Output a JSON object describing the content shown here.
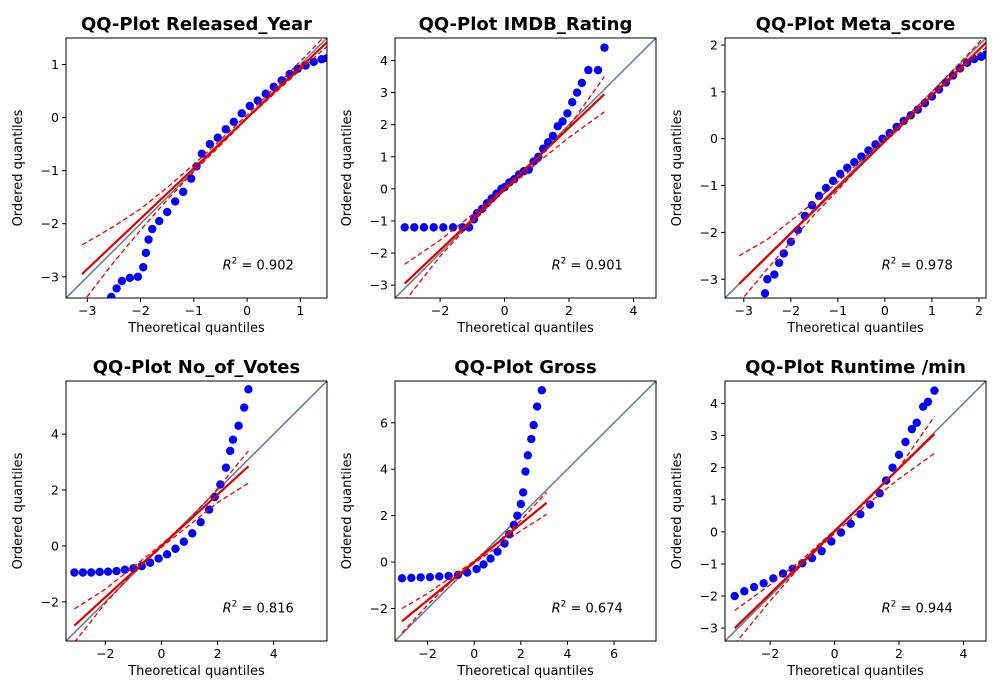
{
  "chart_data": [
    {
      "type": "scatter",
      "title": "QQ-Plot Released_Year",
      "xlabel": "Theoretical quantiles",
      "ylabel": "Ordered quantiles",
      "xlim": [
        -3.4,
        1.5
      ],
      "ylim": [
        -3.4,
        1.5
      ],
      "xticks": [
        -3,
        -2,
        -1,
        0,
        1
      ],
      "yticks": [
        -3,
        -2,
        -1,
        0,
        1
      ],
      "r2_label": "0.902",
      "points": [
        [
          -2.55,
          -3.38
        ],
        [
          -2.45,
          -3.22
        ],
        [
          -2.35,
          -3.08
        ],
        [
          -2.2,
          -3.02
        ],
        [
          -2.05,
          -3.0
        ],
        [
          -1.95,
          -2.82
        ],
        [
          -1.9,
          -2.55
        ],
        [
          -1.85,
          -2.3
        ],
        [
          -1.78,
          -2.1
        ],
        [
          -1.65,
          -1.95
        ],
        [
          -1.5,
          -1.78
        ],
        [
          -1.35,
          -1.58
        ],
        [
          -1.2,
          -1.4
        ],
        [
          -1.05,
          -1.15
        ],
        [
          -0.95,
          -0.92
        ],
        [
          -0.85,
          -0.68
        ],
        [
          -0.7,
          -0.5
        ],
        [
          -0.55,
          -0.38
        ],
        [
          -0.4,
          -0.22
        ],
        [
          -0.25,
          -0.08
        ],
        [
          -0.1,
          0.08
        ],
        [
          0.05,
          0.22
        ],
        [
          0.2,
          0.32
        ],
        [
          0.35,
          0.45
        ],
        [
          0.5,
          0.58
        ],
        [
          0.65,
          0.7
        ],
        [
          0.8,
          0.82
        ],
        [
          0.95,
          0.92
        ],
        [
          1.1,
          0.98
        ],
        [
          1.25,
          1.05
        ],
        [
          1.4,
          1.1
        ],
        [
          1.5,
          1.12
        ]
      ],
      "fit_line": [
        [
          -3.1,
          -2.95
        ],
        [
          1.5,
          1.42
        ]
      ],
      "ci_upper": [
        [
          -3.1,
          -2.4
        ],
        [
          -2.5,
          -2.05
        ],
        [
          -2.0,
          -1.72
        ],
        [
          -1.5,
          -1.32
        ],
        [
          -1.0,
          -0.88
        ],
        [
          -0.5,
          -0.42
        ],
        [
          0.0,
          0.05
        ],
        [
          0.5,
          0.55
        ],
        [
          1.0,
          1.06
        ],
        [
          1.5,
          1.58
        ]
      ],
      "ci_lower": [
        [
          -3.1,
          -3.5
        ],
        [
          -2.5,
          -2.72
        ],
        [
          -2.0,
          -2.12
        ],
        [
          -1.5,
          -1.55
        ],
        [
          -1.0,
          -1.02
        ],
        [
          -0.5,
          -0.52
        ],
        [
          0.0,
          -0.02
        ],
        [
          0.5,
          0.44
        ],
        [
          1.0,
          0.9
        ],
        [
          1.5,
          1.34
        ]
      ]
    },
    {
      "type": "scatter",
      "title": "QQ-Plot IMDB_Rating",
      "xlabel": "Theoretical quantiles",
      "ylabel": "Ordered quantiles",
      "xlim": [
        -3.4,
        4.7
      ],
      "ylim": [
        -3.4,
        4.7
      ],
      "xticks": [
        -2,
        0,
        2,
        4
      ],
      "yticks": [
        -3,
        -2,
        -1,
        0,
        1,
        2,
        3,
        4
      ],
      "r2_label": "0.901",
      "points": [
        [
          -3.1,
          -1.2
        ],
        [
          -2.8,
          -1.2
        ],
        [
          -2.5,
          -1.2
        ],
        [
          -2.2,
          -1.2
        ],
        [
          -1.9,
          -1.2
        ],
        [
          -1.6,
          -1.2
        ],
        [
          -1.3,
          -1.2
        ],
        [
          -1.1,
          -1.2
        ],
        [
          -0.95,
          -0.95
        ],
        [
          -0.85,
          -0.75
        ],
        [
          -0.7,
          -0.62
        ],
        [
          -0.55,
          -0.45
        ],
        [
          -0.4,
          -0.3
        ],
        [
          -0.25,
          -0.15
        ],
        [
          -0.1,
          0.0
        ],
        [
          0.0,
          0.05
        ],
        [
          0.15,
          0.2
        ],
        [
          0.3,
          0.3
        ],
        [
          0.45,
          0.45
        ],
        [
          0.6,
          0.55
        ],
        [
          0.75,
          0.6
        ],
        [
          0.9,
          0.85
        ],
        [
          1.05,
          1.0
        ],
        [
          1.2,
          1.25
        ],
        [
          1.35,
          1.45
        ],
        [
          1.5,
          1.65
        ],
        [
          1.65,
          1.95
        ],
        [
          1.8,
          2.1
        ],
        [
          1.95,
          2.35
        ],
        [
          2.1,
          2.7
        ],
        [
          2.25,
          3.0
        ],
        [
          2.4,
          3.3
        ],
        [
          2.6,
          3.7
        ],
        [
          2.9,
          3.7
        ],
        [
          3.1,
          4.4
        ]
      ],
      "fit_line": [
        [
          -3.1,
          -2.95
        ],
        [
          3.1,
          2.95
        ]
      ],
      "ci_upper": [
        [
          -3.1,
          -2.35
        ],
        [
          -2.0,
          -1.6
        ],
        [
          -1.0,
          -0.8
        ],
        [
          0.0,
          0.05
        ],
        [
          1.0,
          0.95
        ],
        [
          2.0,
          1.95
        ],
        [
          3.1,
          3.5
        ]
      ],
      "ci_lower": [
        [
          -3.1,
          -3.5
        ],
        [
          -2.0,
          -2.1
        ],
        [
          -1.0,
          -1.02
        ],
        [
          0.0,
          -0.05
        ],
        [
          1.0,
          0.8
        ],
        [
          2.0,
          1.6
        ],
        [
          3.1,
          2.4
        ]
      ]
    },
    {
      "type": "scatter",
      "title": "QQ-Plot Meta_score",
      "xlabel": "Theoretical quantiles",
      "ylabel": "Ordered quantiles",
      "xlim": [
        -3.4,
        2.15
      ],
      "ylim": [
        -3.4,
        2.15
      ],
      "xticks": [
        -3,
        -2,
        -1,
        0,
        1,
        2
      ],
      "yticks": [
        -3,
        -2,
        -1,
        0,
        1,
        2
      ],
      "r2_label": "0.978",
      "points": [
        [
          -2.55,
          -3.3
        ],
        [
          -2.5,
          -3.0
        ],
        [
          -2.35,
          -2.9
        ],
        [
          -2.25,
          -2.65
        ],
        [
          -2.15,
          -2.45
        ],
        [
          -2.0,
          -2.2
        ],
        [
          -1.85,
          -1.95
        ],
        [
          -1.7,
          -1.65
        ],
        [
          -1.55,
          -1.42
        ],
        [
          -1.4,
          -1.22
        ],
        [
          -1.25,
          -1.05
        ],
        [
          -1.1,
          -0.9
        ],
        [
          -0.95,
          -0.75
        ],
        [
          -0.8,
          -0.62
        ],
        [
          -0.65,
          -0.5
        ],
        [
          -0.5,
          -0.38
        ],
        [
          -0.35,
          -0.25
        ],
        [
          -0.2,
          -0.12
        ],
        [
          -0.05,
          0.0
        ],
        [
          0.1,
          0.12
        ],
        [
          0.25,
          0.25
        ],
        [
          0.4,
          0.38
        ],
        [
          0.55,
          0.5
        ],
        [
          0.7,
          0.62
        ],
        [
          0.85,
          0.76
        ],
        [
          1.0,
          0.9
        ],
        [
          1.15,
          1.05
        ],
        [
          1.3,
          1.2
        ],
        [
          1.45,
          1.35
        ],
        [
          1.6,
          1.5
        ],
        [
          1.75,
          1.62
        ],
        [
          1.9,
          1.7
        ],
        [
          2.05,
          1.75
        ],
        [
          2.15,
          1.8
        ]
      ],
      "fit_line": [
        [
          -3.1,
          -3.1
        ],
        [
          2.15,
          2.05
        ]
      ],
      "ci_upper": [
        [
          -3.1,
          -2.5
        ],
        [
          -2.5,
          -2.15
        ],
        [
          -2.0,
          -1.75
        ],
        [
          -1.5,
          -1.35
        ],
        [
          -1.0,
          -0.92
        ],
        [
          -0.5,
          -0.45
        ],
        [
          0.0,
          0.02
        ],
        [
          0.5,
          0.5
        ],
        [
          1.0,
          1.0
        ],
        [
          1.5,
          1.52
        ],
        [
          2.0,
          2.05
        ],
        [
          2.15,
          2.25
        ]
      ],
      "ci_lower": [
        [
          -3.1,
          -3.5
        ],
        [
          -2.5,
          -2.78
        ],
        [
          -2.0,
          -2.2
        ],
        [
          -1.5,
          -1.62
        ],
        [
          -1.0,
          -1.1
        ],
        [
          -0.5,
          -0.55
        ],
        [
          0.0,
          -0.05
        ],
        [
          0.5,
          0.42
        ],
        [
          1.0,
          0.92
        ],
        [
          1.5,
          1.35
        ],
        [
          2.0,
          1.82
        ],
        [
          2.15,
          1.95
        ]
      ]
    },
    {
      "type": "scatter",
      "title": "QQ-Plot No_of_Votes",
      "xlabel": "Theoretical quantiles",
      "ylabel": "Ordered quantiles",
      "xlim": [
        -3.4,
        5.9
      ],
      "ylim": [
        -3.4,
        5.9
      ],
      "xticks": [
        -2,
        0,
        2,
        4
      ],
      "yticks": [
        -2,
        0,
        2,
        4
      ],
      "r2_label": "0.816",
      "points": [
        [
          -3.1,
          -0.95
        ],
        [
          -2.8,
          -0.95
        ],
        [
          -2.5,
          -0.95
        ],
        [
          -2.2,
          -0.93
        ],
        [
          -1.9,
          -0.92
        ],
        [
          -1.6,
          -0.9
        ],
        [
          -1.3,
          -0.85
        ],
        [
          -1.0,
          -0.8
        ],
        [
          -0.7,
          -0.72
        ],
        [
          -0.4,
          -0.6
        ],
        [
          -0.1,
          -0.45
        ],
        [
          0.2,
          -0.3
        ],
        [
          0.5,
          -0.1
        ],
        [
          0.8,
          0.15
        ],
        [
          1.1,
          0.45
        ],
        [
          1.4,
          0.85
        ],
        [
          1.7,
          1.3
        ],
        [
          1.9,
          1.75
        ],
        [
          2.1,
          2.2
        ],
        [
          2.3,
          2.8
        ],
        [
          2.45,
          3.4
        ],
        [
          2.55,
          3.8
        ],
        [
          2.75,
          4.3
        ],
        [
          2.95,
          4.95
        ],
        [
          3.1,
          5.6
        ]
      ],
      "fit_line": [
        [
          -3.1,
          -2.85
        ],
        [
          3.1,
          2.85
        ]
      ],
      "ci_upper": [
        [
          -3.1,
          -2.25
        ],
        [
          -2.0,
          -1.55
        ],
        [
          -1.0,
          -0.75
        ],
        [
          0.0,
          0.05
        ],
        [
          1.0,
          0.95
        ],
        [
          2.0,
          2.05
        ],
        [
          3.1,
          3.4
        ]
      ],
      "ci_lower": [
        [
          -3.1,
          -3.45
        ],
        [
          -2.0,
          -2.05
        ],
        [
          -1.0,
          -0.95
        ],
        [
          0.0,
          -0.05
        ],
        [
          1.0,
          0.75
        ],
        [
          2.0,
          1.55
        ],
        [
          3.1,
          2.25
        ]
      ]
    },
    {
      "type": "scatter",
      "title": "QQ-Plot Gross",
      "xlabel": "Theoretical quantiles",
      "ylabel": "Ordered quantiles",
      "xlim": [
        -3.4,
        7.8
      ],
      "ylim": [
        -3.4,
        7.8
      ],
      "xticks": [
        -2,
        0,
        2,
        4,
        6
      ],
      "yticks": [
        -2,
        0,
        2,
        4,
        6
      ],
      "r2_label": "0.674",
      "points": [
        [
          -3.1,
          -0.7
        ],
        [
          -2.7,
          -0.68
        ],
        [
          -2.3,
          -0.66
        ],
        [
          -1.9,
          -0.65
        ],
        [
          -1.5,
          -0.62
        ],
        [
          -1.1,
          -0.6
        ],
        [
          -0.7,
          -0.55
        ],
        [
          -0.3,
          -0.45
        ],
        [
          0.1,
          -0.3
        ],
        [
          0.4,
          -0.1
        ],
        [
          0.7,
          0.15
        ],
        [
          1.0,
          0.45
        ],
        [
          1.3,
          0.8
        ],
        [
          1.5,
          1.2
        ],
        [
          1.7,
          1.6
        ],
        [
          1.85,
          2.0
        ],
        [
          2.0,
          2.5
        ],
        [
          2.1,
          3.0
        ],
        [
          2.2,
          3.9
        ],
        [
          2.3,
          4.6
        ],
        [
          2.45,
          5.3
        ],
        [
          2.55,
          5.9
        ],
        [
          2.7,
          6.7
        ],
        [
          2.9,
          7.4
        ]
      ],
      "fit_line": [
        [
          -3.1,
          -2.55
        ],
        [
          3.1,
          2.55
        ]
      ],
      "ci_upper": [
        [
          -3.1,
          -2.0
        ],
        [
          -2.0,
          -1.35
        ],
        [
          -1.0,
          -0.65
        ],
        [
          0.0,
          0.05
        ],
        [
          1.0,
          0.85
        ],
        [
          2.0,
          1.8
        ],
        [
          3.1,
          3.0
        ]
      ],
      "ci_lower": [
        [
          -3.1,
          -3.05
        ],
        [
          -2.0,
          -1.85
        ],
        [
          -1.0,
          -0.85
        ],
        [
          0.0,
          -0.05
        ],
        [
          1.0,
          0.65
        ],
        [
          2.0,
          1.35
        ],
        [
          3.1,
          2.05
        ]
      ]
    },
    {
      "type": "scatter",
      "title": "QQ-Plot Runtime /min",
      "xlabel": "Theoretical quantiles",
      "ylabel": "Ordered quantiles",
      "xlim": [
        -3.4,
        4.7
      ],
      "ylim": [
        -3.4,
        4.7
      ],
      "xticks": [
        -2,
        0,
        2,
        4
      ],
      "yticks": [
        -3,
        -2,
        -1,
        0,
        1,
        2,
        3,
        4
      ],
      "r2_label": "0.944",
      "points": [
        [
          -3.1,
          -2.0
        ],
        [
          -2.8,
          -1.85
        ],
        [
          -2.5,
          -1.72
        ],
        [
          -2.2,
          -1.6
        ],
        [
          -1.9,
          -1.45
        ],
        [
          -1.6,
          -1.3
        ],
        [
          -1.3,
          -1.15
        ],
        [
          -1.0,
          -0.98
        ],
        [
          -0.7,
          -0.82
        ],
        [
          -0.4,
          -0.6
        ],
        [
          -0.1,
          -0.3
        ],
        [
          0.2,
          -0.02
        ],
        [
          0.5,
          0.25
        ],
        [
          0.8,
          0.55
        ],
        [
          1.1,
          0.85
        ],
        [
          1.4,
          1.2
        ],
        [
          1.6,
          1.6
        ],
        [
          1.8,
          2.0
        ],
        [
          2.0,
          2.4
        ],
        [
          2.2,
          2.8
        ],
        [
          2.4,
          3.2
        ],
        [
          2.55,
          3.4
        ],
        [
          2.75,
          3.9
        ],
        [
          2.9,
          4.05
        ],
        [
          3.1,
          4.4
        ]
      ],
      "fit_line": [
        [
          -3.1,
          -3.0
        ],
        [
          3.1,
          3.05
        ]
      ],
      "ci_upper": [
        [
          -3.1,
          -2.45
        ],
        [
          -2.0,
          -1.65
        ],
        [
          -1.0,
          -0.85
        ],
        [
          0.0,
          0.05
        ],
        [
          1.0,
          0.95
        ],
        [
          2.0,
          2.0
        ],
        [
          3.1,
          3.6
        ]
      ],
      "ci_lower": [
        [
          -3.1,
          -3.5
        ],
        [
          -2.0,
          -2.15
        ],
        [
          -1.0,
          -1.0
        ],
        [
          0.0,
          -0.05
        ],
        [
          1.0,
          0.85
        ],
        [
          2.0,
          1.65
        ],
        [
          3.1,
          2.45
        ]
      ]
    }
  ],
  "colors": {
    "points": "#0000ff",
    "fit_line": "#dd0000",
    "ci_band": "#ee0000",
    "reference_line": "#708090",
    "axes": "#000000"
  }
}
